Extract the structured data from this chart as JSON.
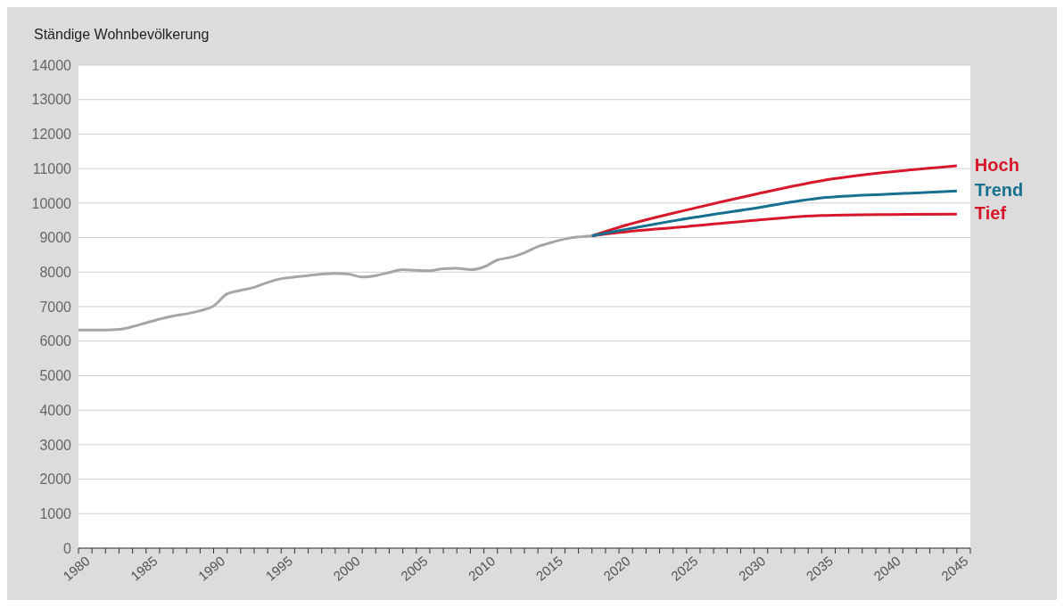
{
  "chart_data": {
    "type": "line",
    "ylabel": "Ständige Wohnbevölkerung",
    "xlim": [
      1980,
      2046
    ],
    "xticks": [
      1980,
      {
        "value": 1981,
        "label": null
      },
      {
        "value": 1982,
        "label": null
      },
      {
        "value": 1983,
        "label": null
      },
      {
        "value": 1984,
        "label": null
      },
      1985,
      {
        "value": 1986,
        "label": null
      },
      {
        "value": 1987,
        "label": null
      },
      {
        "value": 1988,
        "label": null
      },
      {
        "value": 1989,
        "label": null
      },
      1990,
      {
        "value": 1991,
        "label": null
      },
      {
        "value": 1992,
        "label": null
      },
      {
        "value": 1993,
        "label": null
      },
      {
        "value": 1994,
        "label": null
      },
      1995,
      {
        "value": 1996,
        "label": null
      },
      {
        "value": 1997,
        "label": null
      },
      {
        "value": 1998,
        "label": null
      },
      {
        "value": 1999,
        "label": null
      },
      2000,
      {
        "value": 2001,
        "label": null
      },
      {
        "value": 2002,
        "label": null
      },
      {
        "value": 2003,
        "label": null
      },
      {
        "value": 2004,
        "label": null
      },
      2005,
      {
        "value": 2006,
        "label": null
      },
      {
        "value": 2007,
        "label": null
      },
      {
        "value": 2008,
        "label": null
      },
      {
        "value": 2009,
        "label": null
      },
      2010,
      {
        "value": 2011,
        "label": null
      },
      {
        "value": 2012,
        "label": null
      },
      {
        "value": 2013,
        "label": null
      },
      {
        "value": 2014,
        "label": null
      },
      2015,
      {
        "value": 2016,
        "label": null
      },
      {
        "value": 2017,
        "label": null
      },
      {
        "value": 2018,
        "label": null
      },
      {
        "value": 2019,
        "label": null
      },
      2020,
      {
        "value": 2021,
        "label": null
      },
      {
        "value": 2022,
        "label": null
      },
      {
        "value": 2023,
        "label": null
      },
      {
        "value": 2024,
        "label": null
      },
      2025,
      {
        "value": 2026,
        "label": null
      },
      {
        "value": 2027,
        "label": null
      },
      {
        "value": 2028,
        "label": null
      },
      {
        "value": 2029,
        "label": null
      },
      2030,
      {
        "value": 2031,
        "label": null
      },
      {
        "value": 2032,
        "label": null
      },
      {
        "value": 2033,
        "label": null
      },
      {
        "value": 2034,
        "label": null
      },
      2035,
      {
        "value": 2036,
        "label": null
      },
      {
        "value": 2037,
        "label": null
      },
      {
        "value": 2038,
        "label": null
      },
      {
        "value": 2039,
        "label": null
      },
      2040,
      {
        "value": 2041,
        "label": null
      },
      {
        "value": 2042,
        "label": null
      },
      {
        "value": 2043,
        "label": null
      },
      {
        "value": 2044,
        "label": null
      },
      2045,
      {
        "value": 2046,
        "label": null
      }
    ],
    "ylim": [
      0,
      14000
    ],
    "yticks": [
      0,
      1000,
      2000,
      3000,
      4000,
      5000,
      6000,
      7000,
      8000,
      9000,
      10000,
      11000,
      12000,
      13000,
      14000
    ],
    "grid": "y",
    "marker": "none",
    "line_style": "solid",
    "series": [
      {
        "color": "#a6a6a6",
        "x": [
          1980,
          1981,
          1982,
          1983,
          1984,
          1985,
          1986,
          1987,
          1988,
          1989,
          1990,
          1991,
          1992,
          1993,
          1994,
          1995,
          1996,
          1997,
          1998,
          1999,
          2000,
          2001,
          2002,
          2003,
          2004,
          2005,
          2006,
          2007,
          2008,
          2009,
          2010,
          2011,
          2012,
          2013,
          2014,
          2015,
          2016,
          2017,
          2018
        ],
        "values": [
          6320,
          6320,
          6320,
          6340,
          6420,
          6530,
          6640,
          6730,
          6790,
          6880,
          7020,
          7370,
          7470,
          7560,
          7700,
          7810,
          7860,
          7900,
          7940,
          7960,
          7940,
          7860,
          7900,
          7990,
          8070,
          8050,
          8040,
          8100,
          8110,
          8070,
          8150,
          8350,
          8430,
          8560,
          8740,
          8860,
          8960,
          9020,
          9050
        ]
      },
      {
        "name": "Tief",
        "color": "#d7182a",
        "x": [
          2018,
          2020,
          2025,
          2030,
          2035,
          2040,
          2045
        ],
        "values": [
          9050,
          9150,
          9320,
          9500,
          9640,
          9670,
          9680
        ]
      },
      {
        "name": "Hoch",
        "color": "#d7182a",
        "x": [
          2018,
          2020,
          2025,
          2030,
          2035,
          2040,
          2045
        ],
        "values": [
          9050,
          9300,
          9800,
          10250,
          10650,
          10900,
          11080
        ]
      },
      {
        "name": "Trend",
        "color": "#17708f",
        "x": [
          2018,
          2020,
          2025,
          2030,
          2035,
          2040,
          2045
        ],
        "values": [
          9050,
          9200,
          9550,
          9850,
          10150,
          10260,
          10350
        ]
      }
    ]
  }
}
